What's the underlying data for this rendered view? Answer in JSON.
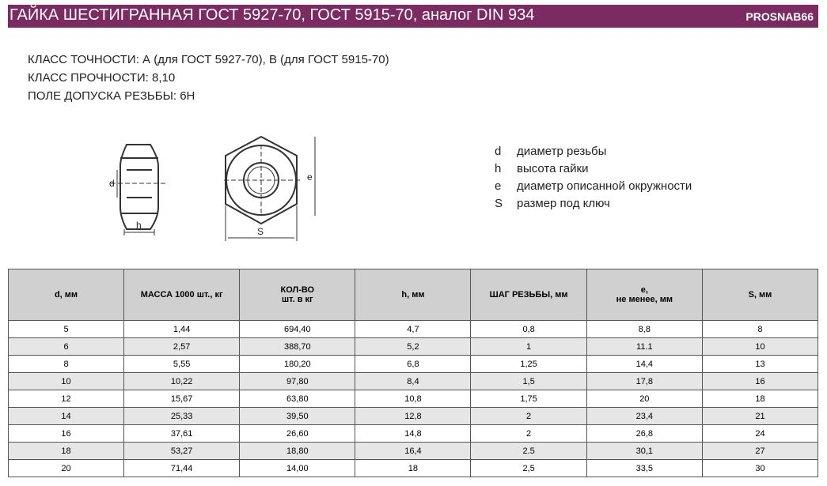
{
  "header": {
    "title": "ГАЙКА ШЕСТИГРАННАЯ ГОСТ 5927-70, ГОСТ 5915-70, аналог DIN 934",
    "brand": "PROSNAB66"
  },
  "specs": [
    "КЛАСС ТОЧНОСТИ: А (для ГОСТ 5927-70), В (для ГОСТ 5915-70)",
    "КЛАСС ПРОЧНОСТИ: 8,10",
    "ПОЛЕ ДОПУСКА РЕЗЬБЫ: 6Н"
  ],
  "diagram": {
    "labels": {
      "d": "d",
      "h": "h",
      "e": "e",
      "s": "S"
    }
  },
  "legend": [
    {
      "symbol": "d",
      "text": "диаметр резьбы"
    },
    {
      "symbol": "h",
      "text": "высота гайки"
    },
    {
      "symbol": "e",
      "text": "диаметр описанной окружности"
    },
    {
      "symbol": "S",
      "text": "размер под ключ"
    }
  ],
  "table": {
    "columns": [
      [
        "d, мм"
      ],
      [
        "МАССА 1000 шт., кг"
      ],
      [
        "КОЛ-ВО",
        "шт. в кг"
      ],
      [
        "h, мм"
      ],
      [
        "ШАГ РЕЗЬБЫ, мм"
      ],
      [
        "e,",
        "не менее, мм"
      ],
      [
        "S, мм"
      ]
    ],
    "rows": [
      [
        "5",
        "1,44",
        "694,40",
        "4,7",
        "0,8",
        "8,8",
        "8"
      ],
      [
        "6",
        "2,57",
        "388,70",
        "5,2",
        "1",
        "11.1",
        "10"
      ],
      [
        "8",
        "5,55",
        "180,20",
        "6,8",
        "1,25",
        "14,4",
        "13"
      ],
      [
        "10",
        "10,22",
        "97,80",
        "8,4",
        "1,5",
        "17,8",
        "16"
      ],
      [
        "12",
        "15,67",
        "63,80",
        "10,8",
        "1,75",
        "20",
        "18"
      ],
      [
        "14",
        "25,33",
        "39,50",
        "12,8",
        "2",
        "23,4",
        "21"
      ],
      [
        "16",
        "37,61",
        "26,60",
        "14,8",
        "2",
        "26,8",
        "24"
      ],
      [
        "18",
        "53,27",
        "18,80",
        "16,4",
        "2.5",
        "30,1",
        "27"
      ],
      [
        "20",
        "71,44",
        "14,00",
        "18",
        "2,5",
        "33,5",
        "30"
      ]
    ]
  }
}
